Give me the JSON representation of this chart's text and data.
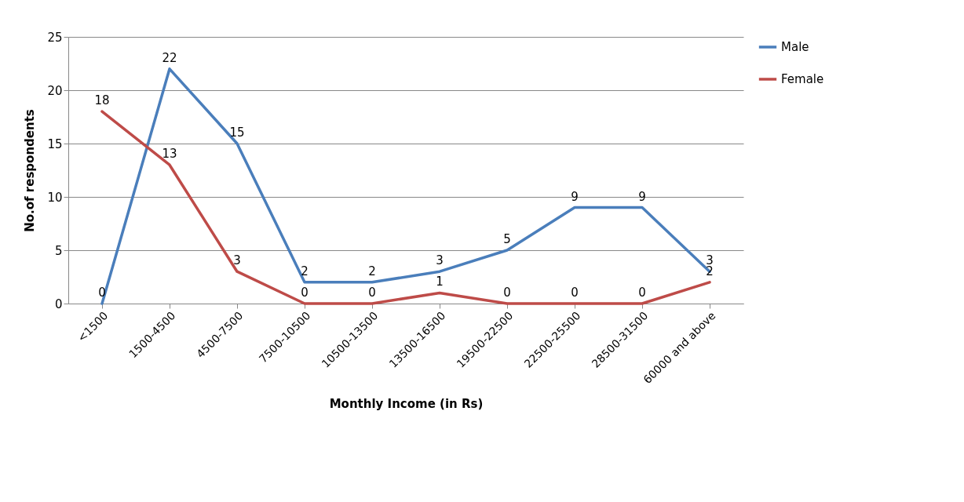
{
  "chart_data": {
    "type": "line",
    "xlabel": "Monthly Income (in Rs)",
    "ylabel": "No.of respondents",
    "categories": [
      "<1500",
      "1500-4500",
      "4500-7500",
      "7500-10500",
      "10500-13500",
      "13500-16500",
      "19500-22500",
      "22500-25500",
      "28500-31500",
      "60000 and above"
    ],
    "series": [
      {
        "name": "Male",
        "color": "#4a7ebb",
        "values": [
          0,
          22,
          15,
          2,
          2,
          3,
          5,
          9,
          9,
          3
        ]
      },
      {
        "name": "Female",
        "color": "#be4b48",
        "values": [
          18,
          13,
          3,
          0,
          0,
          1,
          0,
          0,
          0,
          2
        ]
      }
    ],
    "ylim": [
      0,
      25
    ],
    "yticks": [
      0,
      5,
      10,
      15,
      20,
      25
    ],
    "grid": "y",
    "legend": "right",
    "data_labels": true,
    "marker": "none",
    "line_style": "solid"
  }
}
